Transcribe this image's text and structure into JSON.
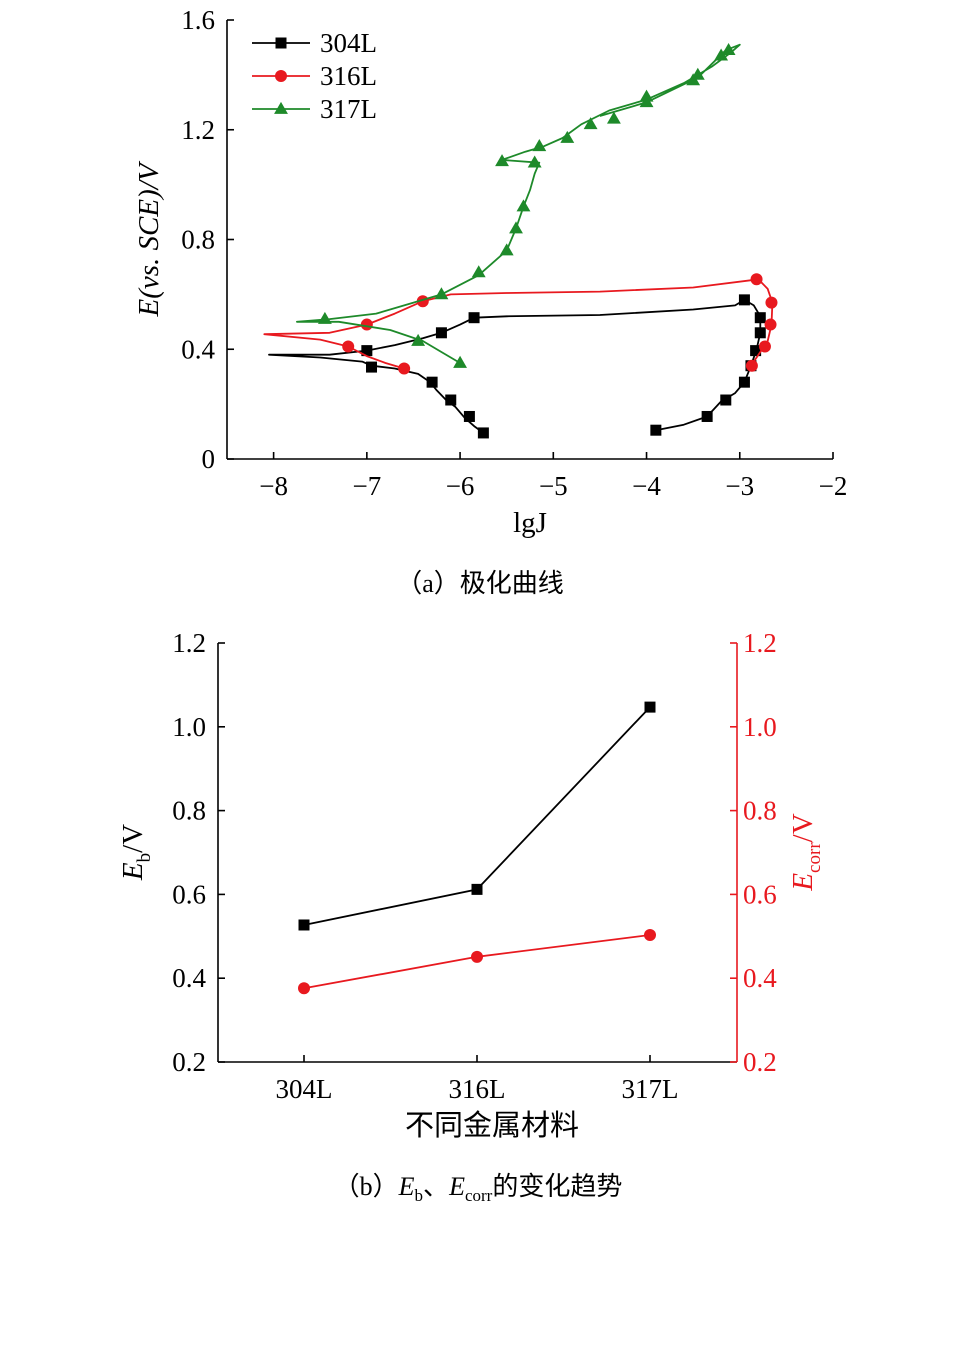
{
  "chart_data": [
    {
      "type": "line",
      "caption": "（a）极化曲线",
      "ylabel": "E(vs. SCE)/V",
      "xlabel": "lgJ",
      "xlim": [
        -8.5,
        -2
      ],
      "ylim": [
        0,
        1.6
      ],
      "x_ticks": [
        "−8",
        "−7",
        "−6",
        "−5",
        "−4",
        "−3",
        "−2"
      ],
      "y_ticks": [
        "0",
        "0.4",
        "0.8",
        "1.2",
        "1.6"
      ],
      "legend_position": "top-left",
      "series": [
        {
          "name": "304L",
          "color": "#000000",
          "marker": "square",
          "curve": [
            [
              -5.75,
              0.095
            ],
            [
              -5.85,
              0.12
            ],
            [
              -5.95,
              0.15
            ],
            [
              -6.05,
              0.19
            ],
            [
              -6.15,
              0.215
            ],
            [
              -6.25,
              0.25
            ],
            [
              -6.32,
              0.28
            ],
            [
              -6.45,
              0.31
            ],
            [
              -6.7,
              0.33
            ],
            [
              -6.95,
              0.34
            ],
            [
              -7.05,
              0.355
            ],
            [
              -7.5,
              0.37
            ],
            [
              -8.05,
              0.38
            ],
            [
              -7.4,
              0.38
            ],
            [
              -7.0,
              0.395
            ],
            [
              -6.7,
              0.415
            ],
            [
              -6.4,
              0.44
            ],
            [
              -6.2,
              0.46
            ],
            [
              -6.0,
              0.49
            ],
            [
              -5.85,
              0.515
            ],
            [
              -5.5,
              0.52
            ],
            [
              -4.5,
              0.525
            ],
            [
              -3.5,
              0.545
            ],
            [
              -3.05,
              0.56
            ],
            [
              -2.95,
              0.58
            ],
            [
              -2.85,
              0.56
            ],
            [
              -2.78,
              0.52
            ],
            [
              -2.78,
              0.46
            ],
            [
              -2.82,
              0.4
            ],
            [
              -2.88,
              0.34
            ],
            [
              -2.95,
              0.28
            ],
            [
              -3.05,
              0.24
            ],
            [
              -3.2,
              0.21
            ],
            [
              -3.35,
              0.155
            ],
            [
              -3.6,
              0.125
            ],
            [
              -3.9,
              0.105
            ]
          ],
          "marker_points": [
            [
              -5.75,
              0.095
            ],
            [
              -5.9,
              0.155
            ],
            [
              -6.1,
              0.215
            ],
            [
              -6.3,
              0.28
            ],
            [
              -6.95,
              0.335
            ],
            [
              -7.0,
              0.395
            ],
            [
              -6.2,
              0.46
            ],
            [
              -5.85,
              0.515
            ],
            [
              -2.95,
              0.58
            ],
            [
              -2.78,
              0.515
            ],
            [
              -2.78,
              0.46
            ],
            [
              -2.83,
              0.395
            ],
            [
              -2.88,
              0.34
            ],
            [
              -2.95,
              0.28
            ],
            [
              -3.15,
              0.215
            ],
            [
              -3.35,
              0.155
            ],
            [
              -3.9,
              0.105
            ]
          ]
        },
        {
          "name": "316L",
          "color": "#e8191f",
          "marker": "circle",
          "curve": [
            [
              -6.6,
              0.33
            ],
            [
              -6.8,
              0.35
            ],
            [
              -7.0,
              0.375
            ],
            [
              -7.2,
              0.41
            ],
            [
              -7.5,
              0.435
            ],
            [
              -8.1,
              0.455
            ],
            [
              -7.4,
              0.46
            ],
            [
              -7.0,
              0.49
            ],
            [
              -6.7,
              0.53
            ],
            [
              -6.4,
              0.575
            ],
            [
              -6.1,
              0.6
            ],
            [
              -5.5,
              0.605
            ],
            [
              -4.5,
              0.61
            ],
            [
              -3.5,
              0.625
            ],
            [
              -2.8,
              0.655
            ],
            [
              -2.7,
              0.62
            ],
            [
              -2.65,
              0.57
            ],
            [
              -2.66,
              0.49
            ],
            [
              -2.7,
              0.43
            ],
            [
              -2.78,
              0.39
            ],
            [
              -2.88,
              0.34
            ]
          ],
          "marker_points": [
            [
              -6.6,
              0.33
            ],
            [
              -7.2,
              0.41
            ],
            [
              -7.0,
              0.49
            ],
            [
              -6.4,
              0.575
            ],
            [
              -2.82,
              0.655
            ],
            [
              -2.66,
              0.57
            ],
            [
              -2.67,
              0.49
            ],
            [
              -2.73,
              0.41
            ],
            [
              -2.87,
              0.34
            ]
          ]
        },
        {
          "name": "317L",
          "color": "#1e8a2a",
          "marker": "triangle",
          "curve": [
            [
              -6.0,
              0.35
            ],
            [
              -6.2,
              0.39
            ],
            [
              -6.4,
              0.43
            ],
            [
              -6.75,
              0.47
            ],
            [
              -7.3,
              0.5
            ],
            [
              -7.75,
              0.5
            ],
            [
              -7.4,
              0.51
            ],
            [
              -6.9,
              0.53
            ],
            [
              -6.5,
              0.57
            ],
            [
              -6.2,
              0.6
            ],
            [
              -5.8,
              0.67
            ],
            [
              -5.5,
              0.76
            ],
            [
              -5.4,
              0.84
            ],
            [
              -5.32,
              0.92
            ],
            [
              -5.25,
              0.98
            ],
            [
              -5.2,
              1.04
            ],
            [
              -5.15,
              1.08
            ],
            [
              -5.55,
              1.09
            ],
            [
              -5.3,
              1.12
            ],
            [
              -5.1,
              1.14
            ],
            [
              -4.9,
              1.17
            ],
            [
              -4.7,
              1.22
            ],
            [
              -4.4,
              1.27
            ],
            [
              -4.0,
              1.31
            ],
            [
              -3.6,
              1.37
            ],
            [
              -3.3,
              1.43
            ],
            [
              -3.1,
              1.48
            ],
            [
              -3.0,
              1.51
            ],
            [
              -3.15,
              1.49
            ],
            [
              -3.45,
              1.39
            ],
            [
              -4.0,
              1.3
            ],
            [
              -4.5,
              1.25
            ]
          ],
          "marker_points": [
            [
              -6.0,
              0.35
            ],
            [
              -6.45,
              0.43
            ],
            [
              -7.45,
              0.51
            ],
            [
              -6.2,
              0.6
            ],
            [
              -5.8,
              0.68
            ],
            [
              -5.5,
              0.76
            ],
            [
              -5.4,
              0.84
            ],
            [
              -5.32,
              0.92
            ],
            [
              -5.2,
              1.08
            ],
            [
              -5.55,
              1.085
            ],
            [
              -5.15,
              1.14
            ],
            [
              -4.85,
              1.17
            ],
            [
              -4.6,
              1.22
            ],
            [
              -4.35,
              1.24
            ],
            [
              -4.0,
              1.3
            ],
            [
              -4.0,
              1.32
            ],
            [
              -3.5,
              1.38
            ],
            [
              -3.45,
              1.4
            ],
            [
              -3.2,
              1.47
            ],
            [
              -3.12,
              1.49
            ]
          ]
        }
      ]
    },
    {
      "type": "line",
      "caption_prefix": "（b）",
      "caption_e": "E",
      "caption_b": "b",
      "caption_sep": "、",
      "caption_corr": "corr",
      "caption_suffix": "的变化趋势",
      "xlabel": "不同金属材料",
      "ylabel_left_main": "E",
      "ylabel_left_sub": "b",
      "ylabel_left_unit": "/V",
      "ylabel_right_main": "E",
      "ylabel_right_sub": "corr",
      "ylabel_right_unit": "/V",
      "categories": [
        "304L",
        "316L",
        "317L"
      ],
      "ylim": [
        0.2,
        1.2
      ],
      "y_ticks": [
        "0.2",
        "0.4",
        "0.6",
        "0.8",
        "1.0",
        "1.2"
      ],
      "right_axis_color": "#e8191f",
      "series": [
        {
          "axis": "left",
          "color": "#000000",
          "marker": "square",
          "values": [
            0.527,
            0.612,
            1.047
          ]
        },
        {
          "axis": "right",
          "color": "#e8191f",
          "marker": "circle",
          "values": [
            0.376,
            0.451,
            0.503
          ]
        }
      ]
    }
  ]
}
